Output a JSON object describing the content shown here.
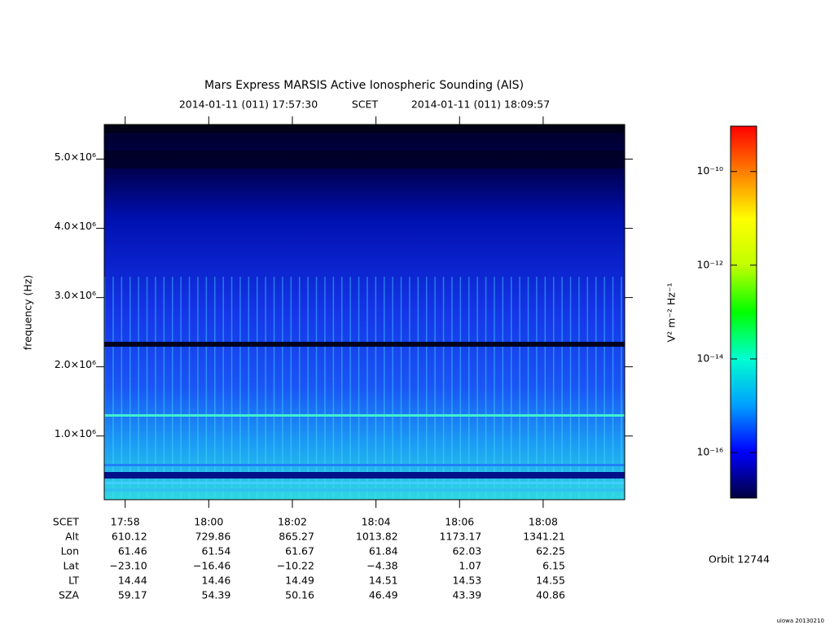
{
  "chart_data": {
    "type": "spectrogram",
    "title": "Mars Express MARSIS Active Ionospheric Sounding (AIS)",
    "subtitle": {
      "start": "2014-01-11 (011) 17:57:30",
      "frame": "SCET",
      "end": "2014-01-11 (011) 18:09:57"
    },
    "y_label": "frequency (Hz)",
    "ylim": [
      80000,
      5500000
    ],
    "yticks": [
      {
        "value": 1000000,
        "label": "1.0×10⁶"
      },
      {
        "value": 2000000,
        "label": "2.0×10⁶"
      },
      {
        "value": 3000000,
        "label": "3.0×10⁶"
      },
      {
        "value": 4000000,
        "label": "4.0×10⁶"
      },
      {
        "value": 5000000,
        "label": "5.0×10⁶"
      }
    ],
    "xlim": [
      64650,
      65397
    ],
    "xticks": [
      {
        "value": 64680,
        "label": "17:58"
      },
      {
        "value": 64800,
        "label": "18:00"
      },
      {
        "value": 64920,
        "label": "18:02"
      },
      {
        "value": 65040,
        "label": "18:04"
      },
      {
        "value": 65160,
        "label": "18:06"
      },
      {
        "value": 65280,
        "label": "18:08"
      }
    ],
    "x_row_label": "SCET",
    "ephemeris": [
      {
        "name": "Alt",
        "values": [
          "610.12",
          "729.86",
          "865.27",
          "1013.82",
          "1173.17",
          "1341.21"
        ]
      },
      {
        "name": "Lon",
        "values": [
          "61.46",
          "61.54",
          "61.67",
          "61.84",
          "62.03",
          "62.25"
        ]
      },
      {
        "name": "Lat",
        "values": [
          "−23.10",
          "−16.46",
          "−10.22",
          "−4.38",
          "1.07",
          "6.15"
        ]
      },
      {
        "name": "LT",
        "values": [
          "14.44",
          "14.46",
          "14.49",
          "14.51",
          "14.53",
          "14.55"
        ]
      },
      {
        "name": "SZA",
        "values": [
          "59.17",
          "54.39",
          "50.16",
          "46.49",
          "43.39",
          "40.86"
        ]
      }
    ],
    "colorbar": {
      "label": "V² m⁻² Hz⁻¹",
      "log_scale": true,
      "zlim": [
        1.07e-17,
        9.3e-10
      ],
      "zticks": [
        {
          "value": 1e-16,
          "label": "10⁻¹⁶"
        },
        {
          "value": 1e-14,
          "label": "10⁻¹⁴"
        },
        {
          "value": 1e-12,
          "label": "10⁻¹²"
        },
        {
          "value": 1e-10,
          "label": "10⁻¹⁰"
        }
      ],
      "colormap": [
        "#000040",
        "#0000ff",
        "#00a0ff",
        "#00ffd0",
        "#00ff00",
        "#c0ff00",
        "#ffff00",
        "#ff8000",
        "#ff0000"
      ]
    },
    "orbit": "Orbit 12744",
    "footer": "uiowa 20130210"
  }
}
